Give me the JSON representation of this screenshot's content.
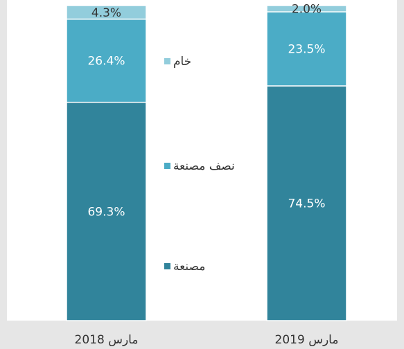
{
  "chart_data": {
    "type": "stacked_bar",
    "categories": [
      "مارس 2018",
      "مارس 2019"
    ],
    "series": [
      {
        "name": "مصنعة",
        "color": "#31849b",
        "values": [
          69.3,
          74.5
        ],
        "value_labels": [
          "69.3%",
          "74.5%"
        ]
      },
      {
        "name": "نصف مصنعة",
        "color": "#4bacc6",
        "values": [
          26.4,
          23.5
        ],
        "value_labels": [
          "26.4%",
          "23.5%"
        ]
      },
      {
        "name": "خام",
        "color": "#92cddc",
        "values": [
          4.3,
          2.0
        ],
        "value_labels": [
          "4.3%",
          "2.0%"
        ]
      }
    ]
  }
}
